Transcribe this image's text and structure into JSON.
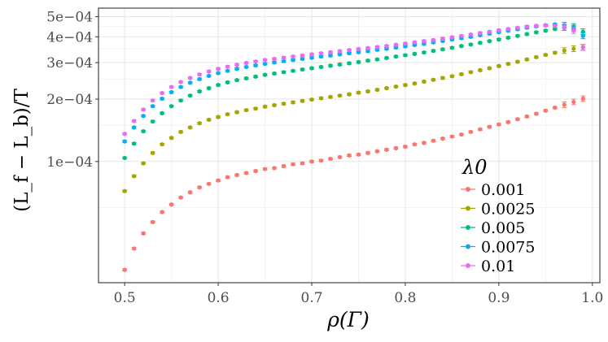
{
  "chart_data": {
    "type": "scatter",
    "title": "",
    "xlabel": "ρ(Γ)",
    "ylabel": "(L_f − L_b)/T",
    "xlim": [
      0.472,
      1.008
    ],
    "ylim": [
      2.6e-05,
      0.00055
    ],
    "y_scale": "log",
    "grid": true,
    "legend_position": "bottom-right",
    "legend_title": "λ0",
    "x_ticks": [
      0.5,
      0.6,
      0.7,
      0.8,
      0.9,
      1.0
    ],
    "x_tick_labels": [
      "0.5",
      "0.6",
      "0.7",
      "0.8",
      "0.9",
      "1.0"
    ],
    "y_ticks": [
      0.0001,
      0.0002,
      0.0003,
      0.0004,
      0.0005
    ],
    "y_tick_labels": [
      "1e−04",
      "2e−04",
      "3e−04",
      "4e−04",
      "5e−04"
    ],
    "x_start": 0.5,
    "x_step": 0.01,
    "series": [
      {
        "name": "0.001",
        "color": "#F8766D",
        "y": [
          3e-05,
          3.8e-05,
          4.5e-05,
          5.1e-05,
          5.7e-05,
          6.2e-05,
          6.7e-05,
          7.1e-05,
          7.5e-05,
          7.8e-05,
          8.1e-05,
          8.4e-05,
          8.6e-05,
          8.8e-05,
          9e-05,
          9.2e-05,
          9.3e-05,
          9.5e-05,
          9.7e-05,
          9.8e-05,
          0.0001,
          0.000101,
          0.000103,
          0.000105,
          0.000107,
          0.000108,
          0.00011,
          0.000112,
          0.000114,
          0.000116,
          0.000118,
          0.000121,
          0.000123,
          0.000126,
          0.000129,
          0.000132,
          0.000135,
          0.000139,
          0.000143,
          0.000147,
          0.000151,
          0.000155,
          0.00016,
          0.000165,
          0.00017,
          0.000176,
          0.000182,
          0.000188,
          0.000194,
          0.000201
        ]
      },
      {
        "name": "0.0025",
        "color": "#A3A500",
        "y": [
          7.2e-05,
          8.5e-05,
          9.8e-05,
          0.00011,
          0.000121,
          0.00013,
          0.000139,
          0.000146,
          0.000153,
          0.000159,
          0.000164,
          0.000169,
          0.000173,
          0.000177,
          0.00018,
          0.000184,
          0.000187,
          0.00019,
          0.000193,
          0.000196,
          0.000199,
          0.000202,
          0.000205,
          0.000208,
          0.000211,
          0.000215,
          0.000218,
          0.000222,
          0.000226,
          0.00023,
          0.000234,
          0.000238,
          0.000243,
          0.000248,
          0.000253,
          0.000258,
          0.000264,
          0.00027,
          0.000276,
          0.000282,
          0.000289,
          0.000296,
          0.000303,
          0.000311,
          0.000319,
          0.000327,
          0.000335,
          0.000343,
          0.00035,
          0.000356
        ]
      },
      {
        "name": "0.005",
        "color": "#00BF7D",
        "y": [
          0.000104,
          0.000122,
          0.00014,
          0.000156,
          0.000171,
          0.000185,
          0.000197,
          0.000208,
          0.000218,
          0.000226,
          0.000234,
          0.000241,
          0.000247,
          0.000252,
          0.000257,
          0.000262,
          0.000266,
          0.00027,
          0.000274,
          0.000278,
          0.000282,
          0.000286,
          0.00029,
          0.000294,
          0.000298,
          0.000302,
          0.000307,
          0.000311,
          0.000316,
          0.000321,
          0.000326,
          0.000331,
          0.000336,
          0.000342,
          0.000348,
          0.000354,
          0.000361,
          0.000367,
          0.000374,
          0.000381,
          0.000388,
          0.000396,
          0.000404,
          0.000412,
          0.00042,
          0.000428,
          0.000436,
          0.000443,
          0.000448,
          0.000423
        ]
      },
      {
        "name": "0.0075",
        "color": "#00B0F6",
        "y": [
          0.000125,
          0.000146,
          0.000166,
          0.000185,
          0.000201,
          0.000216,
          0.000229,
          0.00024,
          0.00025,
          0.000259,
          0.000267,
          0.000274,
          0.00028,
          0.000286,
          0.000291,
          0.000296,
          0.000301,
          0.000305,
          0.000309,
          0.000313,
          0.000317,
          0.000321,
          0.000325,
          0.000329,
          0.000333,
          0.000337,
          0.000341,
          0.000346,
          0.00035,
          0.000355,
          0.00036,
          0.000365,
          0.00037,
          0.000376,
          0.000382,
          0.000388,
          0.000394,
          0.0004,
          0.000407,
          0.000414,
          0.000421,
          0.000428,
          0.000435,
          0.000442,
          0.000449,
          0.000455,
          0.000459,
          0.000455,
          0.00044,
          0.000404
        ]
      },
      {
        "name": "0.01",
        "color": "#E76BF3",
        "y": [
          0.000136,
          0.000157,
          0.000178,
          0.000197,
          0.000214,
          0.000229,
          0.000242,
          0.000253,
          0.000263,
          0.000272,
          0.00028,
          0.000287,
          0.000293,
          0.000299,
          0.000304,
          0.000309,
          0.000313,
          0.000317,
          0.000321,
          0.000325,
          0.000329,
          0.000333,
          0.000337,
          0.000341,
          0.000345,
          0.000349,
          0.000353,
          0.000357,
          0.000361,
          0.000366,
          0.000371,
          0.000376,
          0.000381,
          0.000386,
          0.000392,
          0.000398,
          0.000404,
          0.00041,
          0.000417,
          0.000423,
          0.00043,
          0.000436,
          0.000442,
          0.000448,
          0.000452,
          0.000454,
          0.000452,
          0.000445,
          0.000428,
          0.000355
        ]
      }
    ]
  }
}
